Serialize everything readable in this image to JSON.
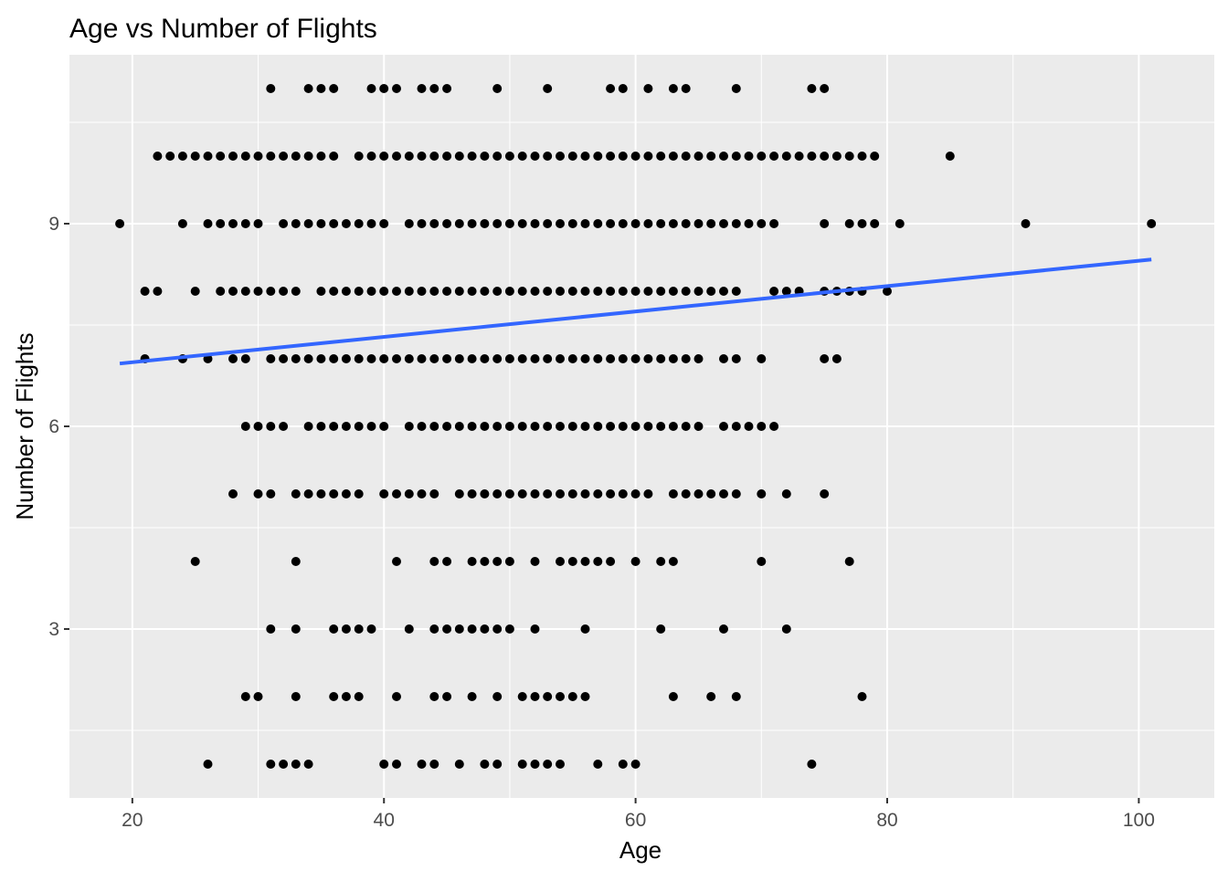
{
  "chart_data": {
    "type": "scatter",
    "title": "Age vs Number of Flights",
    "xlabel": "Age",
    "ylabel": "Number of Flights",
    "xlim": [
      15,
      106
    ],
    "ylim": [
      0.5,
      11.5
    ],
    "x_ticks": [
      20,
      40,
      60,
      80,
      100
    ],
    "y_ticks": [
      3,
      6,
      9
    ],
    "grid": true,
    "colors": {
      "panel_background": "#ebebeb",
      "grid_line": "#ffffff",
      "point": "#000000",
      "trend_line": "#3366ff",
      "axis_text": "#4d4d4d",
      "title_text": "#000000"
    },
    "points_by_flights": [
      {
        "flights": 11,
        "ages": [
          31,
          34,
          35,
          36,
          39,
          40,
          41,
          43,
          44,
          45,
          49,
          53,
          58,
          59,
          61,
          63,
          64,
          68,
          74,
          75
        ]
      },
      {
        "flights": 10,
        "ages": [
          22,
          23,
          24,
          25,
          26,
          27,
          28,
          29,
          30,
          31,
          32,
          33,
          34,
          35,
          36,
          38,
          39,
          40,
          41,
          42,
          43,
          44,
          45,
          46,
          47,
          48,
          49,
          50,
          51,
          52,
          53,
          54,
          55,
          56,
          57,
          58,
          59,
          60,
          61,
          62,
          63,
          64,
          65,
          66,
          67,
          68,
          69,
          70,
          71,
          72,
          73,
          74,
          75,
          76,
          77,
          78,
          79,
          85
        ]
      },
      {
        "flights": 9,
        "ages": [
          19,
          24,
          26,
          27,
          28,
          29,
          30,
          32,
          33,
          34,
          35,
          36,
          37,
          38,
          39,
          40,
          42,
          43,
          44,
          45,
          46,
          47,
          48,
          49,
          50,
          51,
          52,
          53,
          54,
          55,
          56,
          57,
          58,
          59,
          60,
          61,
          62,
          63,
          64,
          65,
          66,
          67,
          68,
          69,
          70,
          71,
          75,
          77,
          78,
          79,
          81,
          91,
          101
        ]
      },
      {
        "flights": 8,
        "ages": [
          21,
          22,
          25,
          27,
          28,
          29,
          30,
          31,
          32,
          33,
          35,
          36,
          37,
          38,
          39,
          40,
          41,
          42,
          43,
          44,
          45,
          46,
          47,
          48,
          49,
          50,
          51,
          52,
          53,
          54,
          55,
          56,
          57,
          58,
          59,
          60,
          61,
          62,
          63,
          64,
          65,
          66,
          67,
          68,
          71,
          72,
          73,
          75,
          76,
          77,
          78,
          80
        ]
      },
      {
        "flights": 7,
        "ages": [
          21,
          24,
          26,
          28,
          29,
          31,
          32,
          33,
          34,
          35,
          36,
          37,
          38,
          39,
          40,
          41,
          42,
          43,
          44,
          45,
          46,
          47,
          48,
          49,
          50,
          51,
          52,
          53,
          54,
          55,
          56,
          57,
          58,
          59,
          60,
          61,
          62,
          63,
          64,
          65,
          67,
          68,
          70,
          75,
          76
        ]
      },
      {
        "flights": 6,
        "ages": [
          29,
          30,
          31,
          32,
          34,
          35,
          36,
          37,
          38,
          39,
          40,
          42,
          43,
          44,
          45,
          46,
          47,
          48,
          49,
          50,
          51,
          52,
          53,
          54,
          55,
          56,
          57,
          58,
          59,
          60,
          61,
          62,
          63,
          64,
          65,
          67,
          68,
          69,
          70,
          71
        ]
      },
      {
        "flights": 5,
        "ages": [
          28,
          30,
          31,
          33,
          34,
          35,
          36,
          37,
          38,
          40,
          41,
          42,
          43,
          44,
          46,
          47,
          48,
          49,
          50,
          51,
          52,
          53,
          54,
          55,
          56,
          57,
          58,
          59,
          60,
          61,
          63,
          64,
          65,
          66,
          67,
          68,
          70,
          72,
          75
        ]
      },
      {
        "flights": 4,
        "ages": [
          25,
          33,
          41,
          44,
          45,
          47,
          48,
          49,
          50,
          52,
          54,
          55,
          56,
          57,
          58,
          60,
          62,
          63,
          70,
          77
        ]
      },
      {
        "flights": 3,
        "ages": [
          31,
          33,
          36,
          37,
          38,
          39,
          42,
          44,
          45,
          46,
          47,
          48,
          49,
          50,
          52,
          56,
          62,
          67,
          72
        ]
      },
      {
        "flights": 2,
        "ages": [
          29,
          30,
          33,
          36,
          37,
          38,
          41,
          44,
          45,
          47,
          49,
          51,
          52,
          53,
          54,
          55,
          56,
          63,
          66,
          68,
          78
        ]
      },
      {
        "flights": 1,
        "ages": [
          26,
          31,
          32,
          33,
          34,
          40,
          41,
          43,
          44,
          46,
          48,
          49,
          51,
          52,
          53,
          54,
          57,
          59,
          60,
          74
        ]
      }
    ],
    "trend_line": {
      "x": [
        19,
        101
      ],
      "y": [
        6.93,
        8.47
      ]
    }
  }
}
